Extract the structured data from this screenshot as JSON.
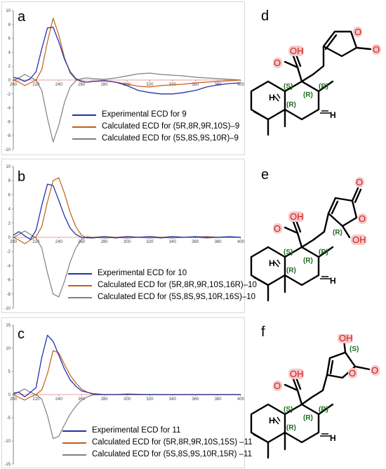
{
  "panel_labels": [
    "a",
    "b",
    "c"
  ],
  "structure_labels": [
    "d",
    "e",
    "f"
  ],
  "colors": {
    "experimental": "#2233aa",
    "calc_match": "#c0601a",
    "calc_enantiomer": "#808080",
    "zero_line": "#e08080",
    "stereo_label": "#1a6b1a",
    "oxygen": "#d01818",
    "oxygen_bg": "#f6c9c9"
  },
  "structures": {
    "d": {
      "stereo": [
        "(S)",
        "(R)",
        "(R)",
        "(R)"
      ],
      "groups": [
        "OH",
        "O",
        "O",
        "O",
        "H",
        "H"
      ]
    },
    "e": {
      "stereo": [
        "(R)",
        "(S)",
        "(R)",
        "(R)",
        "(R)"
      ],
      "groups": [
        "O",
        "O",
        "OH",
        "OH",
        "O",
        "H",
        "H"
      ]
    },
    "f": {
      "stereo": [
        "(S)",
        "(S)",
        "(R)",
        "(R)",
        "(R)"
      ],
      "groups": [
        "OH",
        "O",
        "O",
        "OH",
        "O",
        "H",
        "H"
      ]
    }
  },
  "chart_data": [
    {
      "type": "line",
      "panel": "a",
      "xlim": [
        200,
        400
      ],
      "ylim": [
        -10,
        10
      ],
      "xticks": [
        200,
        220,
        240,
        260,
        280,
        300,
        320,
        340,
        360,
        380,
        400
      ],
      "yticks": [
        -10,
        -8,
        -6,
        -4,
        -2,
        0,
        2,
        4,
        6,
        8,
        10
      ],
      "legend": [
        "Experimental ECD for 9",
        "Calculated ECD for (5R,8R,9R,10S)–9",
        "Calculated ECD for (5S,8S,9S,10R)–9"
      ],
      "series": [
        {
          "name": "Experimental ECD for 9",
          "x": [
            200,
            205,
            210,
            215,
            220,
            225,
            230,
            235,
            240,
            245,
            250,
            255,
            260,
            265,
            270,
            280,
            290,
            300,
            310,
            320,
            330,
            340,
            350,
            360,
            370,
            380,
            390,
            400
          ],
          "y": [
            0.4,
            0.2,
            -0.2,
            0.2,
            1.2,
            4.5,
            7.5,
            7.6,
            5.5,
            3.0,
            1.2,
            0.2,
            -0.2,
            -0.3,
            -0.2,
            -0.1,
            -0.3,
            -0.8,
            -1.5,
            -1.8,
            -2.0,
            -2.0,
            -1.8,
            -1.5,
            -1.0,
            -0.7,
            -0.5,
            -0.4
          ]
        },
        {
          "name": "Calculated ECD for (5R,8R,9R,10S)–9",
          "x": [
            200,
            205,
            210,
            215,
            220,
            225,
            230,
            235,
            240,
            245,
            250,
            255,
            260,
            265,
            270,
            280,
            290,
            300,
            310,
            320,
            330,
            340,
            350,
            360,
            370,
            380,
            390,
            400
          ],
          "y": [
            0.0,
            -0.3,
            -0.8,
            -0.4,
            0.0,
            1.5,
            5.5,
            8.9,
            6.5,
            3.2,
            1.0,
            0.1,
            -0.2,
            -0.3,
            -0.2,
            -0.1,
            -0.3,
            -0.6,
            -0.9,
            -1.0,
            -0.8,
            -0.7,
            -0.6,
            -0.4,
            -0.3,
            -0.2,
            -0.1,
            0.0
          ]
        },
        {
          "name": "Calculated ECD for (5S,8S,9S,10R)–9",
          "x": [
            200,
            205,
            210,
            215,
            220,
            225,
            230,
            235,
            240,
            245,
            250,
            255,
            260,
            265,
            270,
            280,
            290,
            300,
            310,
            320,
            330,
            340,
            350,
            360,
            370,
            380,
            390,
            400
          ],
          "y": [
            0.0,
            0.3,
            0.8,
            0.4,
            0.0,
            -1.5,
            -5.5,
            -8.9,
            -6.5,
            -3.2,
            -1.0,
            -0.1,
            0.2,
            0.3,
            0.2,
            0.1,
            0.3,
            0.6,
            0.9,
            1.0,
            0.8,
            0.7,
            0.6,
            0.4,
            0.3,
            0.2,
            0.1,
            0.0
          ]
        }
      ]
    },
    {
      "type": "line",
      "panel": "b",
      "xlim": [
        200,
        400
      ],
      "ylim": [
        -10,
        10
      ],
      "xticks": [
        200,
        220,
        240,
        260,
        280,
        300,
        320,
        340,
        360,
        380,
        400
      ],
      "yticks": [
        -10,
        -8,
        -6,
        -4,
        -2,
        0,
        2,
        4,
        6,
        8,
        10
      ],
      "legend": [
        "Experimental ECD for 10",
        "Calculated ECD for (5R,8R,9R,10S,16R)–10",
        "Calculated ECD for (5S,8S,9S,10R,16S)–10"
      ],
      "series": [
        {
          "name": "Experimental ECD for 10",
          "x": [
            200,
            205,
            210,
            215,
            220,
            225,
            230,
            235,
            240,
            245,
            250,
            255,
            260,
            270,
            280,
            290,
            300,
            310,
            320,
            330,
            340,
            350,
            360,
            370,
            380,
            390,
            400
          ],
          "y": [
            0.3,
            0.8,
            0.2,
            -0.3,
            1.0,
            4.5,
            7.5,
            7.3,
            5.2,
            3.0,
            1.3,
            0.4,
            0.0,
            -0.1,
            0.1,
            -0.1,
            0.1,
            0.0,
            0.1,
            -0.1,
            0.1,
            0.0,
            0.1,
            0.0,
            0.0,
            0.1,
            0.0
          ]
        },
        {
          "name": "Calculated ECD for (5R,8R,9R,10S,16R)–10",
          "x": [
            200,
            205,
            210,
            215,
            220,
            225,
            230,
            235,
            240,
            245,
            250,
            255,
            260,
            265,
            270,
            280,
            290,
            300,
            310,
            320,
            330,
            340,
            350,
            360,
            370,
            380,
            390,
            400
          ],
          "y": [
            0.0,
            -0.4,
            -0.9,
            -0.4,
            0.1,
            1.5,
            5.0,
            8.0,
            8.4,
            6.2,
            3.5,
            1.5,
            0.3,
            -0.1,
            0.0,
            0.1,
            0.0,
            0.1,
            0.0,
            0.1,
            0.0,
            0.1,
            0.0,
            0.0,
            0.1,
            0.0,
            0.0,
            0.0
          ]
        },
        {
          "name": "Calculated ECD for (5S,8S,9S,10R,16S)–10",
          "x": [
            200,
            205,
            210,
            215,
            220,
            225,
            230,
            235,
            240,
            245,
            250,
            255,
            260,
            265,
            270,
            280,
            290,
            300,
            310,
            320,
            330,
            340,
            350,
            360,
            370,
            380,
            390,
            400
          ],
          "y": [
            0.0,
            0.4,
            0.9,
            0.4,
            -0.1,
            -1.5,
            -5.0,
            -8.0,
            -8.4,
            -6.2,
            -3.5,
            -1.5,
            -0.3,
            0.1,
            0.0,
            -0.1,
            0.0,
            -0.1,
            0.0,
            -0.1,
            0.0,
            -0.1,
            0.0,
            0.0,
            -0.1,
            0.0,
            0.0,
            0.0
          ]
        }
      ]
    },
    {
      "type": "line",
      "panel": "c",
      "xlim": [
        200,
        400
      ],
      "ylim": [
        -15,
        15
      ],
      "xticks": [
        200,
        220,
        240,
        260,
        280,
        300,
        320,
        340,
        360,
        380,
        400
      ],
      "yticks": [
        -15,
        -10,
        -5,
        0,
        5,
        10,
        15
      ],
      "legend": [
        "Experimental ECD for 11",
        "Calculated ECD for (5R,8R,9R,10S,15S) –11",
        "Calculated ECD for (5S,8S,9S,10R,15R) –11"
      ],
      "series": [
        {
          "name": "Experimental ECD for 11",
          "x": [
            200,
            205,
            210,
            215,
            220,
            225,
            230,
            235,
            240,
            245,
            250,
            255,
            260,
            270,
            280,
            290,
            300,
            320,
            340,
            360,
            380,
            400
          ],
          "y": [
            0.3,
            0.5,
            -0.5,
            0.5,
            1.5,
            8.0,
            12.8,
            11.5,
            8.5,
            5.5,
            3.2,
            1.8,
            0.8,
            0.2,
            0.0,
            0.0,
            0.1,
            0.0,
            0.0,
            0.0,
            0.0,
            0.0
          ]
        },
        {
          "name": "Calculated ECD for (5R,8R,9R,10S,15S) –11",
          "x": [
            200,
            205,
            210,
            215,
            220,
            225,
            230,
            235,
            240,
            245,
            250,
            255,
            260,
            265,
            270,
            280,
            290,
            300,
            320,
            340,
            360,
            380,
            400
          ],
          "y": [
            0.0,
            -0.6,
            -1.2,
            -0.5,
            0.0,
            1.0,
            4.5,
            9.5,
            9.0,
            6.5,
            4.2,
            2.5,
            1.2,
            0.5,
            0.1,
            0.0,
            0.0,
            0.0,
            0.0,
            0.0,
            0.0,
            0.0,
            0.0
          ]
        },
        {
          "name": "Calculated ECD for (5S,8S,9S,10R,15R) –11",
          "x": [
            200,
            205,
            210,
            215,
            220,
            225,
            230,
            235,
            240,
            245,
            250,
            255,
            260,
            265,
            270,
            280,
            290,
            300,
            320,
            340,
            360,
            380,
            400
          ],
          "y": [
            0.0,
            0.6,
            1.2,
            0.5,
            0.0,
            -1.0,
            -4.5,
            -9.5,
            -9.0,
            -6.5,
            -4.2,
            -2.5,
            -1.2,
            -0.5,
            -0.1,
            0.0,
            0.0,
            0.0,
            0.0,
            0.0,
            0.0,
            0.0,
            0.0
          ]
        }
      ]
    }
  ]
}
